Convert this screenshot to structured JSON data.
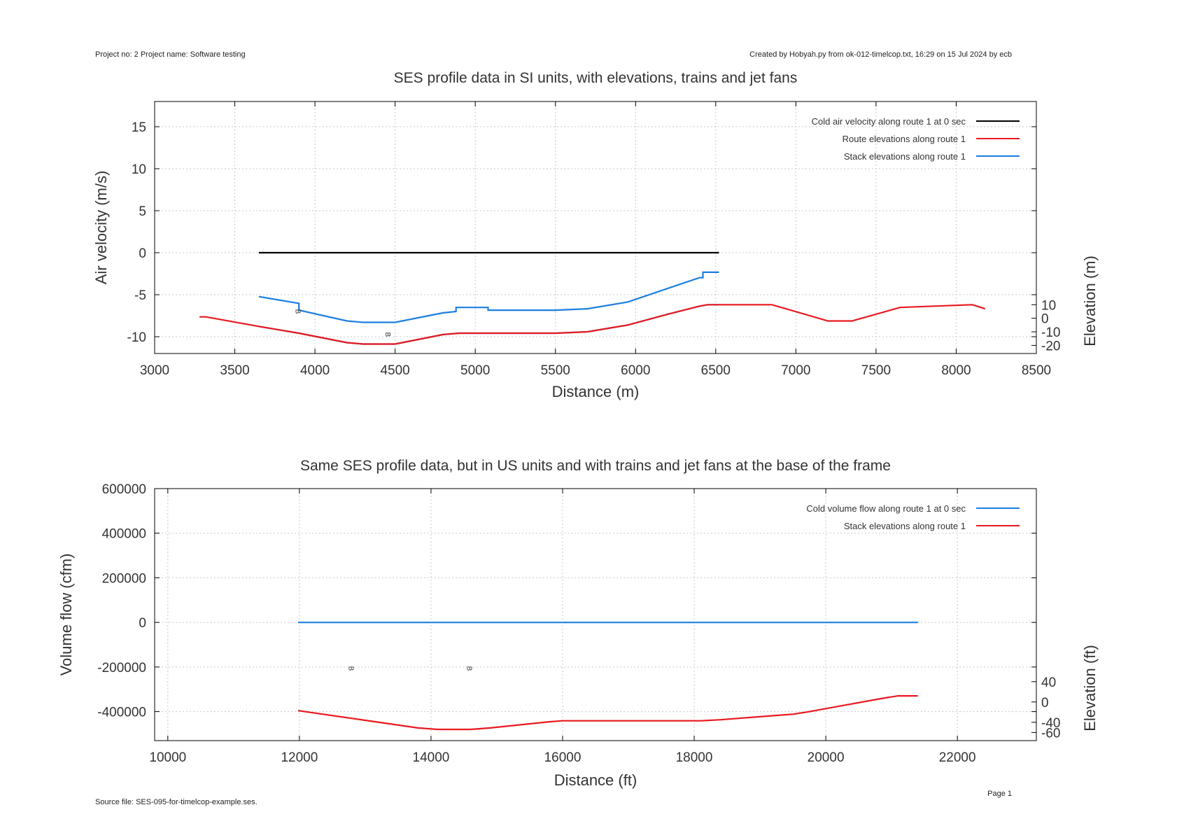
{
  "header": {
    "left": "Project no: 2    Project name: Software testing",
    "right": "Created by Hobyah.py from ok-012-timelcop.txt, 16:29 on 15 Jul 2024 by ecb"
  },
  "footer": {
    "source": "Source file: SES-095-for-timelcop-example.ses.",
    "page": "Page 1"
  },
  "colors": {
    "black": "#000000",
    "red": "#e8191f",
    "blue": "#1c7fe0",
    "grid": "#c8c8c8"
  },
  "chart_data": [
    {
      "type": "line",
      "title": "SES profile data in SI units, with elevations, trains and jet fans",
      "xlabel": "Distance (m)",
      "ylabel": "Air velocity (m/s)",
      "y2label": "Elevation (m)",
      "xlim": [
        3000,
        8500
      ],
      "ylim": [
        -12,
        18
      ],
      "xticks": [
        3000,
        3500,
        4000,
        4500,
        5000,
        5500,
        6000,
        6500,
        7000,
        7500,
        8000,
        8500
      ],
      "yticks": [
        -10,
        -5,
        0,
        5,
        10,
        15
      ],
      "y2lim": [
        -26,
        160
      ],
      "y2ticks": [
        -20,
        -10,
        0,
        10
      ],
      "grid": true,
      "legend_position": "top-right",
      "series": [
        {
          "name": "Cold air velocity along route 1 at 0 sec",
          "color": "#000000",
          "axis": "y",
          "x": [
            3650,
            6520
          ],
          "y": [
            0,
            0
          ]
        },
        {
          "name": "Route elevations along route 1",
          "color": "#e8191f",
          "axis": "y2",
          "x": [
            3280,
            3320,
            3650,
            3900,
            4200,
            4300,
            4500,
            4800,
            4900,
            5500,
            5700,
            5950,
            6200,
            6400,
            6450,
            6850,
            7200,
            7350,
            7650,
            8100,
            8180
          ],
          "y": [
            1,
            1,
            -6,
            -11,
            -18,
            -19,
            -19,
            -12,
            -11,
            -11,
            -10,
            -5,
            3,
            9,
            10,
            10,
            -2,
            -2,
            8,
            10,
            7
          ]
        },
        {
          "name": "Stack elevations along route 1",
          "color": "#1c7fe0",
          "axis": "y2",
          "x": [
            3650,
            3900,
            3900,
            4200,
            4300,
            4500,
            4800,
            4880,
            4880,
            5080,
            5080,
            5500,
            5700,
            5950,
            6200,
            6400,
            6420,
            6420,
            6520
          ],
          "y": [
            16,
            11,
            6,
            -2,
            -3,
            -3,
            4,
            5,
            8,
            8,
            6,
            6,
            7,
            12,
            22,
            30,
            30,
            34,
            34
          ]
        }
      ],
      "extra_series": [
        {
          "color": "#1c7fe0",
          "axis": "y2",
          "x": [
            3650,
            3900,
            4200,
            4300,
            4500,
            4800,
            4900,
            5500,
            5700,
            5950,
            6200,
            6400,
            6450,
            6520
          ],
          "y": [
            -6,
            -11,
            -18,
            -19,
            -19,
            -12,
            -11,
            -11,
            -10,
            -5,
            3,
            9,
            10,
            10
          ]
        }
      ],
      "markers": [
        {
          "label": "B",
          "x": 3880,
          "y2": 5
        },
        {
          "label": "B",
          "x": 4440,
          "y2": -12
        }
      ]
    },
    {
      "type": "line",
      "title": "Same SES profile data, but in US units and with trains and jet fans at the base of the frame",
      "xlabel": "Distance (ft)",
      "ylabel": "Volume flow (cfm)",
      "y2label": "Elevation (ft)",
      "xlim": [
        9800,
        23200
      ],
      "ylim": [
        -530000,
        600000
      ],
      "xticks": [
        10000,
        12000,
        14000,
        16000,
        18000,
        20000,
        22000
      ],
      "yticks": [
        -400000,
        -200000,
        0,
        200000,
        400000,
        600000
      ],
      "y2lim": [
        -76,
        420
      ],
      "y2ticks": [
        -60,
        -40,
        0,
        40
      ],
      "grid": true,
      "legend_position": "top-right",
      "series": [
        {
          "name": "Cold volume flow along route 1 at 0 sec",
          "color": "#1c7fe0",
          "axis": "y",
          "x": [
            11980,
            21400
          ],
          "y": [
            0,
            0
          ]
        },
        {
          "name": "Stack elevations along route 1",
          "color": "#e8191f",
          "axis": "y2",
          "x": [
            11980,
            13000,
            13800,
            14100,
            14600,
            14900,
            15800,
            16000,
            18100,
            18400,
            19200,
            19500,
            19700,
            20300,
            20900,
            21100,
            21400
          ],
          "y": [
            -17,
            -36,
            -51,
            -54,
            -54,
            -51,
            -39,
            -37,
            -37,
            -35,
            -27,
            -24,
            -20,
            -6,
            8,
            12,
            12
          ]
        }
      ],
      "markers": [
        {
          "label": "B",
          "x": 12750,
          "ypx": 955
        },
        {
          "label": "B",
          "x": 14550,
          "ypx": 955
        }
      ]
    }
  ]
}
